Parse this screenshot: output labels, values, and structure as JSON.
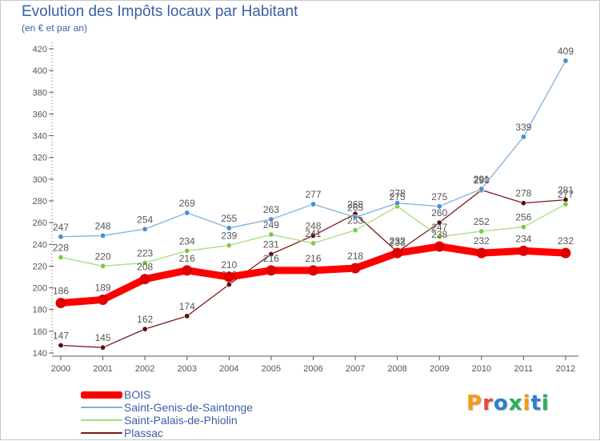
{
  "header": {
    "title": "Evolution des Impôts locaux par Habitant",
    "subtitle": "(en € et par an)"
  },
  "logo": {
    "text": "Proxiti",
    "colors": [
      "#f39c12",
      "#e74c3c",
      "#2a7fd4",
      "#27ae60",
      "#f39c12",
      "#2a7fd4",
      "#27ae60"
    ]
  },
  "colors": {
    "axis": "#555555",
    "grid": "#e6e6e6",
    "text": "#555555",
    "title": "#3a5fa6"
  },
  "chart_data": {
    "type": "line",
    "title": "Evolution des Impôts locaux par Habitant",
    "subtitle": "(en € et par an)",
    "xlabel": "",
    "ylabel": "",
    "x": [
      "2000",
      "2001",
      "2002",
      "2003",
      "2004",
      "2005",
      "2006",
      "2007",
      "2008",
      "2009",
      "2010",
      "2011",
      "2012"
    ],
    "ylim": [
      140,
      420
    ],
    "yticks": [
      140,
      160,
      180,
      200,
      220,
      240,
      260,
      280,
      300,
      320,
      340,
      360,
      380,
      400,
      420
    ],
    "grid": false,
    "legend_position": "bottom-left",
    "series": [
      {
        "name": "Plassac",
        "color": "#7a1a1a",
        "marker": "#5a0f0f",
        "values": [
          147,
          145,
          162,
          174,
          203,
          231,
          248,
          268,
          233,
          260,
          290,
          278,
          281
        ]
      },
      {
        "name": "Saint-Palais-de-Phiolin",
        "color": "#a8dc80",
        "marker": "#7ccc44",
        "values": [
          228,
          220,
          223,
          234,
          239,
          249,
          241,
          253,
          275,
          247,
          252,
          256,
          277
        ]
      },
      {
        "name": "Saint-Genis-de-Saintonge",
        "color": "#80b0dc",
        "marker": "#4a8ed0",
        "values": [
          247,
          248,
          254,
          269,
          255,
          263,
          277,
          265,
          278,
          275,
          291,
          339,
          409
        ]
      },
      {
        "name": "BOIS",
        "color": "#ff0000",
        "marker": "#e00000",
        "values": [
          186,
          189,
          208,
          216,
          210,
          216,
          216,
          218,
          232,
          238,
          232,
          234,
          232
        ]
      }
    ]
  }
}
